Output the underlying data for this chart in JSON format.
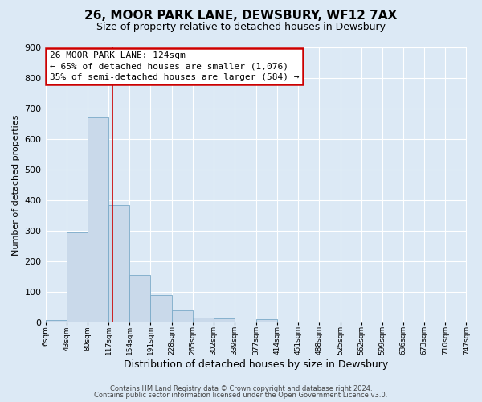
{
  "title": "26, MOOR PARK LANE, DEWSBURY, WF12 7AX",
  "subtitle": "Size of property relative to detached houses in Dewsbury",
  "xlabel": "Distribution of detached houses by size in Dewsbury",
  "ylabel": "Number of detached properties",
  "bar_color": "#c9d9ea",
  "bar_edge_color": "#7aaac8",
  "background_color": "#dce9f5",
  "plot_bg_color": "#dce9f5",
  "grid_color": "#ffffff",
  "bin_edges": [
    6,
    43,
    80,
    117,
    154,
    191,
    228,
    265,
    302,
    339,
    377,
    414,
    451,
    488,
    525,
    562,
    599,
    636,
    673,
    710,
    747
  ],
  "bar_heights": [
    8,
    295,
    670,
    385,
    155,
    88,
    40,
    15,
    12,
    0,
    10,
    0,
    0,
    0,
    0,
    0,
    0,
    0,
    0,
    0
  ],
  "tick_labels": [
    "6sqm",
    "43sqm",
    "80sqm",
    "117sqm",
    "154sqm",
    "191sqm",
    "228sqm",
    "265sqm",
    "302sqm",
    "339sqm",
    "377sqm",
    "414sqm",
    "451sqm",
    "488sqm",
    "525sqm",
    "562sqm",
    "599sqm",
    "636sqm",
    "673sqm",
    "710sqm",
    "747sqm"
  ],
  "ylim": [
    0,
    900
  ],
  "yticks": [
    0,
    100,
    200,
    300,
    400,
    500,
    600,
    700,
    800,
    900
  ],
  "property_line_x": 124,
  "annotation_title": "26 MOOR PARK LANE: 124sqm",
  "annotation_line1": "← 65% of detached houses are smaller (1,076)",
  "annotation_line2": "35% of semi-detached houses are larger (584) →",
  "annotation_box_color": "#ffffff",
  "annotation_box_edge": "#cc0000",
  "property_line_color": "#cc0000",
  "footer1": "Contains HM Land Registry data © Crown copyright and database right 2024.",
  "footer2": "Contains public sector information licensed under the Open Government Licence v3.0."
}
